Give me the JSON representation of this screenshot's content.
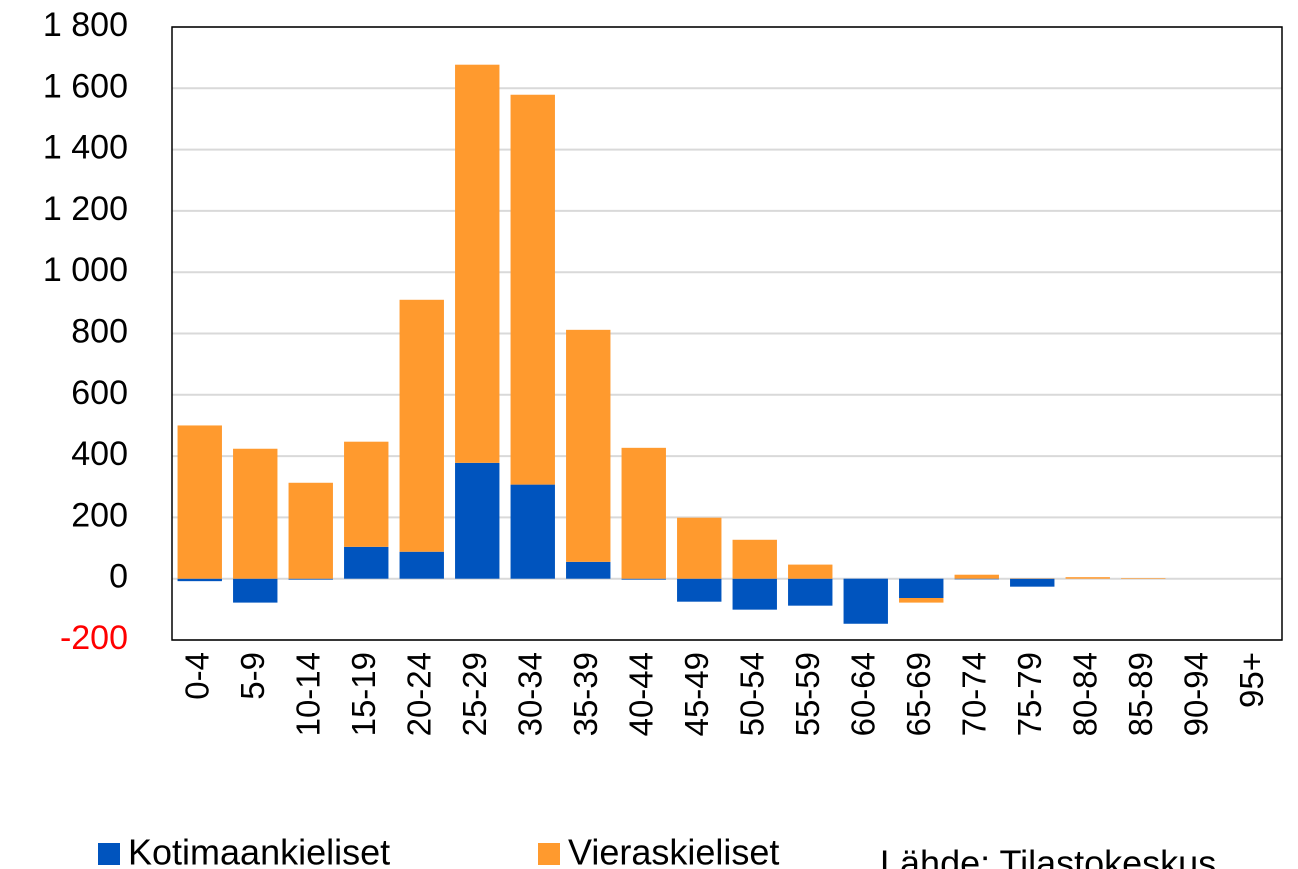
{
  "chart_data": {
    "type": "stacked_bar",
    "categories": [
      "0-4",
      "5-9",
      "10-14",
      "15-19",
      "20-24",
      "25-29",
      "30-34",
      "35-39",
      "40-44",
      "45-49",
      "50-54",
      "55-59",
      "60-64",
      "65-69",
      "70-74",
      "75-79",
      "80-84",
      "85-89",
      "90-94",
      "95+"
    ],
    "series": [
      {
        "name": "Kotimaankieliset",
        "color": "#0054be",
        "values": [
          -8,
          -78,
          -3,
          104,
          88,
          378,
          307,
          55,
          -3,
          -75,
          -101,
          -88,
          -147,
          -63,
          -2,
          -26,
          0,
          0,
          0,
          0
        ]
      },
      {
        "name": "Vieraskieliset",
        "color": "#ff9a2e",
        "values": [
          500,
          424,
          313,
          343,
          822,
          1299,
          1272,
          757,
          427,
          199,
          127,
          46,
          0,
          -15,
          13,
          1,
          5,
          2,
          0,
          0
        ]
      }
    ],
    "ylim": [
      -200,
      1800
    ],
    "yticks": [
      -200,
      0,
      200,
      400,
      600,
      800,
      {
        "value": 1000,
        "label": "1 000"
      },
      {
        "value": 1200,
        "label": "1 200"
      },
      {
        "value": 1400,
        "label": "1 400"
      },
      {
        "value": 1600,
        "label": "1 600"
      },
      {
        "value": 1800,
        "label": "1 800"
      }
    ],
    "negative_tick_color": "#ff0000",
    "grid": true,
    "legend": "bottom",
    "source": "Lähde: Tilastokeskus"
  }
}
